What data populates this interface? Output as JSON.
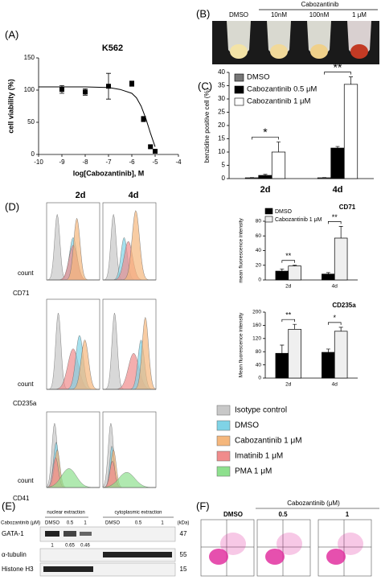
{
  "panel_labels": {
    "A": "(A)",
    "C": "(C)",
    "D": "(D)"
  },
  "tubes": {
    "panel": "(B)",
    "group_label": "Cabozantinib",
    "conditions": [
      "DMSO",
      "10nM",
      "100nM",
      "1 μM"
    ]
  },
  "flow": {
    "columns": [
      "2d",
      "4d"
    ],
    "y_label": "count",
    "markers": [
      "CD71",
      "CD235a",
      "CD41"
    ],
    "legend": [
      {
        "label": "Isotype control",
        "color": "#c8c8c8"
      },
      {
        "label": "DMSO",
        "color": "#7fd3e6"
      },
      {
        "label": "Cabozantinib 1 μM",
        "color": "#f5b77c"
      },
      {
        "label": "Imatinib 1 μM",
        "color": "#f08c8c"
      },
      {
        "label": "PMA 1 μM",
        "color": "#8ee08e"
      }
    ]
  },
  "western": {
    "panel": "(E)",
    "treatment_label": "Cabozantinib (μM)",
    "fractions": [
      "nuclear extraction",
      "cytoplasmic extraction"
    ],
    "lanes": [
      "DMSO",
      "0.5",
      "1"
    ],
    "unit": "(kDa)",
    "proteins": [
      {
        "name": "GATA-1",
        "kda": 47
      },
      {
        "name": "α-tubulin",
        "kda": 55
      },
      {
        "name": "Histone H3",
        "kda": 15
      }
    ],
    "quantification": [
      1,
      0.65,
      0.46
    ]
  },
  "flow_scatter": {
    "panel": "(F)",
    "group_label": "Cabozantinib (μM)",
    "conditions": [
      "DMSO",
      "0.5",
      "1"
    ]
  },
  "chart_data": [
    {
      "type": "scatter",
      "title": "K562",
      "x_label": "log[Cabozantinib], M",
      "y_label": "cell viability (%)",
      "xlim": [
        -10,
        -4
      ],
      "xticks": [
        -10,
        -9,
        -8,
        -7,
        -6,
        -5,
        -4
      ],
      "ylim": [
        0,
        150
      ],
      "yticks": [
        0,
        50,
        100,
        150
      ],
      "series": [
        {
          "color": "#000000",
          "x": [
            -9,
            -8,
            -7,
            -6,
            -5.5,
            -5.2,
            -5
          ],
          "values": [
            101,
            97,
            106,
            110,
            55,
            12,
            5
          ],
          "errors": [
            6,
            5,
            20,
            4,
            4,
            2,
            1
          ]
        }
      ],
      "fit": {
        "color": "#000000",
        "x": [
          -10,
          -8,
          -7,
          -6.5,
          -6,
          -5.8,
          -5.6,
          -5.4,
          -5.2,
          -5
        ],
        "values": [
          105,
          105,
          104,
          101,
          95,
          88,
          75,
          56,
          33,
          12
        ]
      }
    },
    {
      "type": "bar",
      "y_label": "benzidine positive cell (%)",
      "ylim": [
        0,
        40
      ],
      "yticks": [
        0,
        5,
        10,
        15,
        20,
        25,
        30,
        35,
        40
      ],
      "categories": [
        "2d",
        "4d"
      ],
      "annotations": [
        "*",
        "**"
      ],
      "legend": "upper left",
      "series": [
        {
          "name": "DMSO",
          "color": "#777777",
          "values": [
            0.3,
            0.3
          ],
          "errors": [
            0.1,
            0.1
          ]
        },
        {
          "name": "Cabozantinib 0.5 μM",
          "color": "#000000",
          "values": [
            1.2,
            11.5
          ],
          "errors": [
            0.4,
            0.6
          ]
        },
        {
          "name": "Cabozantinib 1 μM",
          "color": "#ffffff",
          "values": [
            10,
            35.5
          ],
          "errors": [
            3.8,
            2.8
          ]
        }
      ]
    },
    {
      "type": "bar",
      "title": "CD71",
      "y_label": "mean fluorescence intensity",
      "ylim": [
        0,
        80
      ],
      "yticks": [
        0,
        20,
        40,
        60,
        80
      ],
      "categories": [
        "2d",
        "4d"
      ],
      "annotations": [
        "**",
        "**"
      ],
      "legend": "upper left",
      "series": [
        {
          "name": "DMSO",
          "color": "#000000",
          "values": [
            12,
            8
          ],
          "errors": [
            3,
            2
          ]
        },
        {
          "name": "Cabozantinib 1 μM",
          "color": "#efefef",
          "values": [
            19,
            57
          ],
          "errors": [
            1,
            16
          ]
        }
      ]
    },
    {
      "type": "bar",
      "title": "CD235a",
      "y_label": "Mean fluorescence intensity",
      "ylim": [
        0,
        200
      ],
      "yticks": [
        0,
        40,
        80,
        120,
        160,
        200
      ],
      "categories": [
        "2d",
        "4d"
      ],
      "annotations": [
        "**",
        "*"
      ],
      "series": [
        {
          "color": "#000000",
          "values": [
            75,
            78
          ],
          "errors": [
            25,
            10
          ]
        },
        {
          "color": "#efefef",
          "values": [
            148,
            142
          ],
          "errors": [
            15,
            12
          ]
        }
      ]
    }
  ]
}
